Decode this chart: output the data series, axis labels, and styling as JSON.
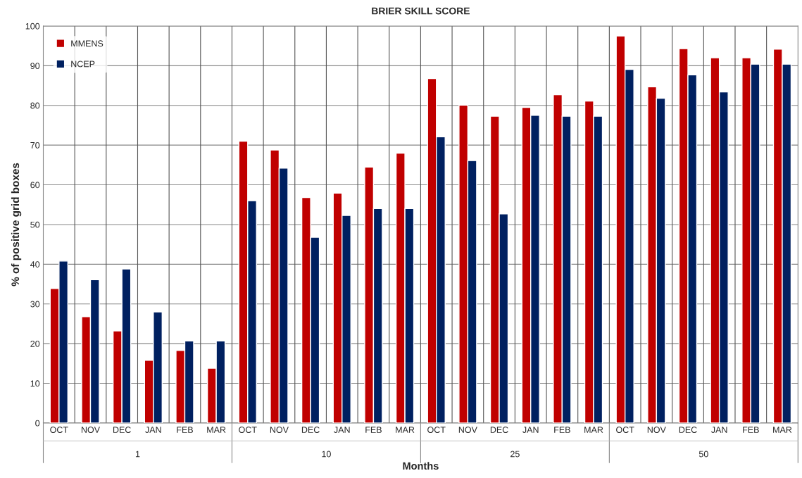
{
  "chart_data": {
    "type": "bar",
    "title": "BRIER SKILL SCORE",
    "xlabel": "Months",
    "ylabel": "% of positive grid boxes",
    "categories": [
      "OCT",
      "NOV",
      "DEC",
      "JAN",
      "FEB",
      "MAR",
      "OCT",
      "NOV",
      "DEC",
      "JAN",
      "FEB",
      "MAR",
      "OCT",
      "NOV",
      "DEC",
      "JAN",
      "FEB",
      "MAR",
      "OCT",
      "NOV",
      "DEC",
      "JAN",
      "FEB",
      "MAR"
    ],
    "series": [
      {
        "name": "MMENS",
        "color": "#c00000",
        "values": [
          33.9,
          26.8,
          23.2,
          15.8,
          18.3,
          13.8,
          71.0,
          68.8,
          56.8,
          57.9,
          64.5,
          68.0,
          86.8,
          80.1,
          77.3,
          79.5,
          82.7,
          81.1,
          97.5,
          84.7,
          94.3,
          92.0,
          92.0,
          94.2
        ]
      },
      {
        "name": "NCEP",
        "color": "#002060",
        "values": [
          40.8,
          36.1,
          38.8,
          28.0,
          20.7,
          20.7,
          56.0,
          64.2,
          46.8,
          52.3,
          54.0,
          54.0,
          72.1,
          66.1,
          52.7,
          77.5,
          77.3,
          77.3,
          89.1,
          81.8,
          87.7,
          83.4,
          90.4,
          90.4
        ]
      }
    ],
    "annotations": [
      "1",
      "10",
      "25",
      "50"
    ],
    "ylim": [
      0,
      100
    ],
    "yticks": [
      0,
      10,
      20,
      30,
      40,
      50,
      60,
      70,
      80,
      90,
      100
    ],
    "grid": true,
    "legend": "top left"
  }
}
